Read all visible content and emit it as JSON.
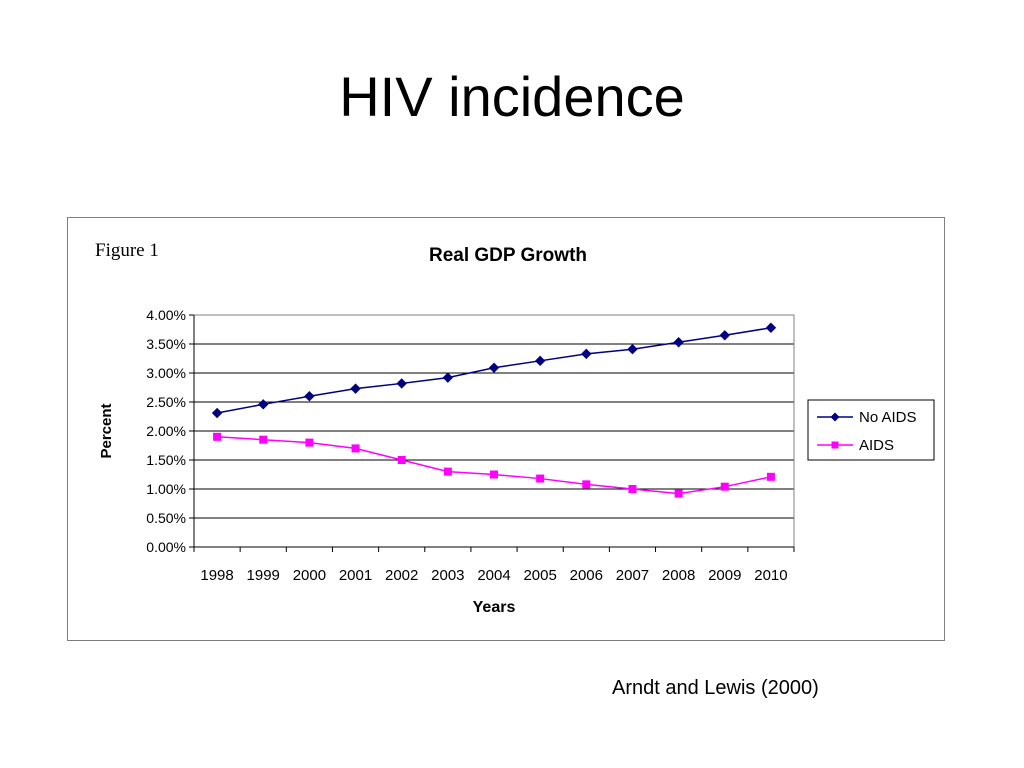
{
  "slide": {
    "title": "HIV incidence",
    "citation": "Arndt and Lewis (2000)"
  },
  "figure": {
    "label": "Figure 1"
  },
  "chart_data": {
    "type": "line",
    "title": "Real GDP Growth",
    "xlabel": "Years",
    "ylabel": "Percent",
    "categories": [
      "1998",
      "1999",
      "2000",
      "2001",
      "2002",
      "2003",
      "2004",
      "2005",
      "2006",
      "2007",
      "2008",
      "2009",
      "2010"
    ],
    "ylim": [
      0,
      4.0
    ],
    "yticks": [
      0,
      0.5,
      1.0,
      1.5,
      2.0,
      2.5,
      3.0,
      3.5,
      4.0
    ],
    "ytick_labels": [
      "0.00%",
      "0.50%",
      "1.00%",
      "1.50%",
      "2.00%",
      "2.50%",
      "3.00%",
      "3.50%",
      "4.00%"
    ],
    "grid": "horizontal",
    "legend_position": "right",
    "series": [
      {
        "name": "No AIDS",
        "color": "#000080",
        "marker": "diamond",
        "values": [
          2.31,
          2.46,
          2.6,
          2.73,
          2.82,
          2.92,
          3.09,
          3.21,
          3.33,
          3.41,
          3.53,
          3.65,
          3.78
        ]
      },
      {
        "name": "AIDS",
        "color": "#ff00ff",
        "marker": "square",
        "values": [
          1.9,
          1.85,
          1.8,
          1.7,
          1.5,
          1.3,
          1.25,
          1.18,
          1.08,
          1.0,
          0.92,
          1.04,
          1.21
        ]
      }
    ]
  }
}
